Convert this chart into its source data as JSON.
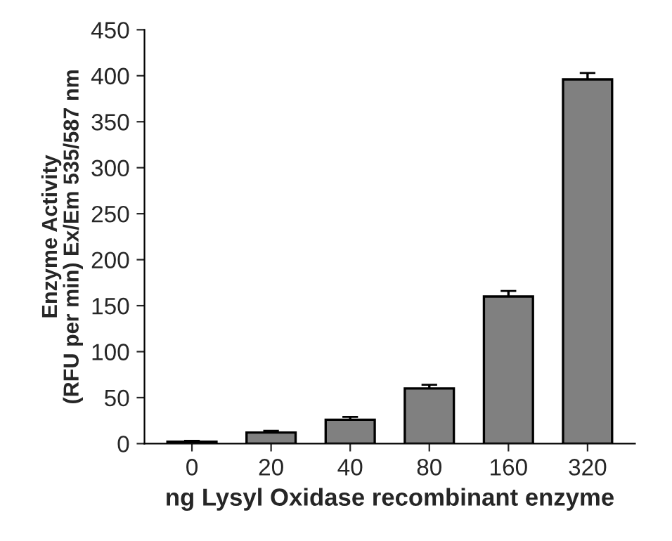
{
  "chart_data": {
    "type": "bar",
    "xlabel": "ng Lysyl Oxidase recombinant enzyme",
    "ylabel": "Enzyme Activity\n(RFU per min) Ex/Em 535/587 nm",
    "categories": [
      "0",
      "20",
      "40",
      "80",
      "160",
      "320"
    ],
    "values": [
      2,
      12,
      26,
      60,
      160,
      396
    ],
    "errors": [
      1,
      2,
      3,
      4,
      6,
      7
    ],
    "color": "#808080",
    "ylim": [
      0,
      450
    ],
    "yticks": [
      0,
      50,
      100,
      150,
      200,
      250,
      300,
      350,
      400,
      450
    ],
    "grid": false,
    "legend": false
  }
}
